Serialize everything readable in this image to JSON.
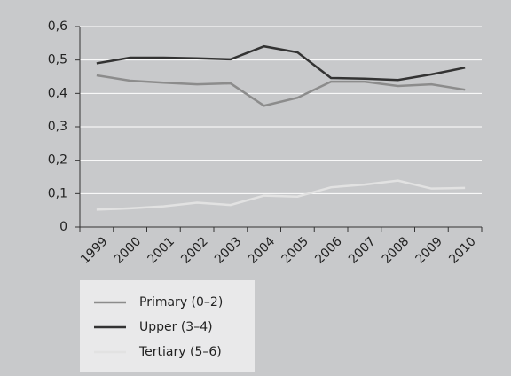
{
  "chart_data": {
    "type": "line",
    "categories": [
      "1999",
      "2000",
      "2001",
      "2002",
      "2003",
      "2004",
      "2005",
      "2006",
      "2007",
      "2008",
      "2009",
      "2010"
    ],
    "series": [
      {
        "name": "Primary (0–2)",
        "color": "#8c8c8c",
        "values": [
          0.454,
          0.438,
          0.432,
          0.427,
          0.43,
          0.363,
          0.387,
          0.435,
          0.435,
          0.422,
          0.427,
          0.411
        ]
      },
      {
        "name": "Upper (3–4)",
        "color": "#333333",
        "values": [
          0.49,
          0.507,
          0.507,
          0.505,
          0.502,
          0.541,
          0.523,
          0.446,
          0.444,
          0.44,
          0.457,
          0.477
        ]
      },
      {
        "name": "Tertiary (5–6)",
        "color": "#e2e2e2",
        "values": [
          0.052,
          0.056,
          0.062,
          0.073,
          0.066,
          0.094,
          0.091,
          0.119,
          0.127,
          0.139,
          0.115,
          0.117
        ]
      }
    ],
    "ylim": [
      0,
      0.6
    ],
    "yticks": [
      {
        "value": 0,
        "label": "0"
      },
      {
        "value": 0.1,
        "label": "0,1"
      },
      {
        "value": 0.2,
        "label": "0,2"
      },
      {
        "value": 0.3,
        "label": "0,3"
      },
      {
        "value": 0.4,
        "label": "0,4"
      },
      {
        "value": 0.5,
        "label": "0,5"
      },
      {
        "value": 0.6,
        "label": "0,6"
      }
    ],
    "grid": true
  }
}
